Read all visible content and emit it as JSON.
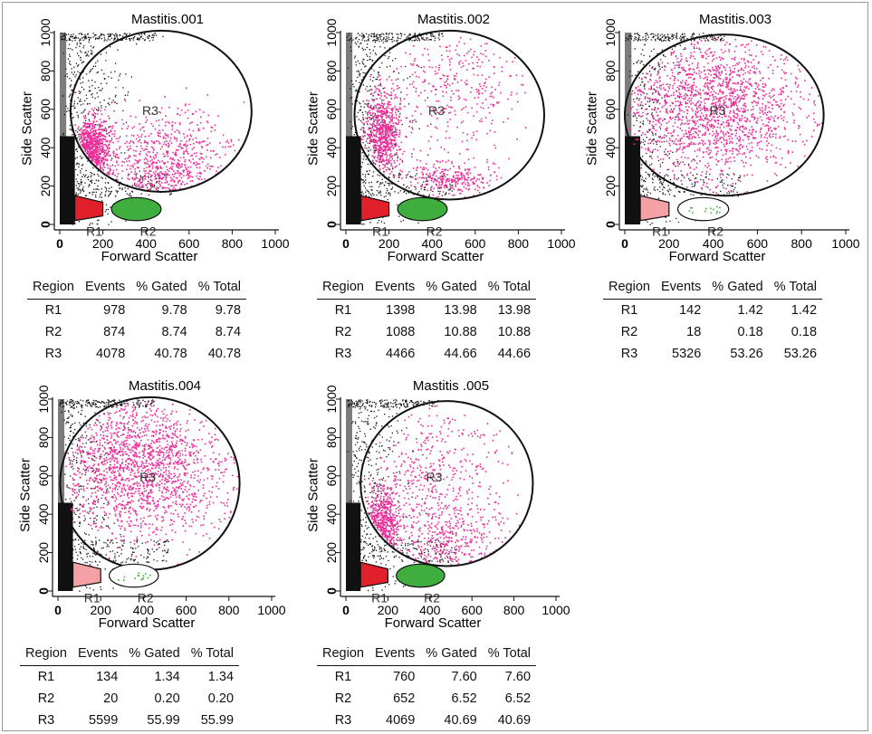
{
  "chart_data": [
    {
      "type": "scatter",
      "title": "Mastitis.001",
      "xlabel": "Forward Scatter",
      "ylabel": "Side Scatter",
      "xlim": [
        0,
        1000
      ],
      "ylim": [
        0,
        1000
      ],
      "xticks": [
        "0",
        "200",
        "400",
        "600",
        "800",
        "1000"
      ],
      "yticks": [
        "0",
        "200",
        "400",
        "600",
        "800",
        "1000"
      ],
      "regions": [
        "R1",
        "R2",
        "R3"
      ],
      "table": {
        "columns": [
          "Region",
          "Events",
          "% Gated",
          "% Total"
        ],
        "rows": [
          [
            "R1",
            "978",
            "9.78",
            "9.78"
          ],
          [
            "R2",
            "874",
            "8.74",
            "8.74"
          ],
          [
            "R3",
            "4078",
            "40.78",
            "40.78"
          ]
        ]
      }
    },
    {
      "type": "scatter",
      "title": "Mastitis.002",
      "xlabel": "Forward Scatter",
      "ylabel": "Side Scatter",
      "xlim": [
        0,
        1000
      ],
      "ylim": [
        0,
        1000
      ],
      "xticks": [
        "0",
        "200",
        "400",
        "600",
        "800",
        "1000"
      ],
      "yticks": [
        "0",
        "200",
        "400",
        "600",
        "800",
        "1000"
      ],
      "regions": [
        "R1",
        "R2",
        "R3"
      ],
      "table": {
        "columns": [
          "Region",
          "Events",
          "% Gated",
          "% Total"
        ],
        "rows": [
          [
            "R1",
            "1398",
            "13.98",
            "13.98"
          ],
          [
            "R2",
            "1088",
            "10.88",
            "10.88"
          ],
          [
            "R3",
            "4466",
            "44.66",
            "44.66"
          ]
        ]
      }
    },
    {
      "type": "scatter",
      "title": "Mastitis.003",
      "xlabel": "Forward Scatter",
      "ylabel": "Side Scatter",
      "xlim": [
        0,
        1000
      ],
      "ylim": [
        0,
        1000
      ],
      "xticks": [
        "0",
        "200",
        "400",
        "600",
        "800",
        "1000"
      ],
      "yticks": [
        "0",
        "200",
        "400",
        "600",
        "800",
        "1000"
      ],
      "regions": [
        "R1",
        "R2",
        "R3"
      ],
      "table": {
        "columns": [
          "Region",
          "Events",
          "% Gated",
          "% Total"
        ],
        "rows": [
          [
            "R1",
            "142",
            "1.42",
            "1.42"
          ],
          [
            "R2",
            "18",
            "0.18",
            "0.18"
          ],
          [
            "R3",
            "5326",
            "53.26",
            "53.26"
          ]
        ]
      }
    },
    {
      "type": "scatter",
      "title": "Mastitis.004",
      "xlabel": "Forward Scatter",
      "ylabel": "Side Scatter",
      "xlim": [
        0,
        1000
      ],
      "ylim": [
        0,
        1000
      ],
      "xticks": [
        "0",
        "200",
        "400",
        "600",
        "800",
        "1000"
      ],
      "yticks": [
        "0",
        "200",
        "400",
        "600",
        "800",
        "1000"
      ],
      "regions": [
        "R1",
        "R2",
        "R3"
      ],
      "table": {
        "columns": [
          "Region",
          "Events",
          "% Gated",
          "% Total"
        ],
        "rows": [
          [
            "R1",
            "134",
            "1.34",
            "1.34"
          ],
          [
            "R2",
            "20",
            "0.20",
            "0.20"
          ],
          [
            "R3",
            "5599",
            "55.99",
            "55.99"
          ]
        ]
      }
    },
    {
      "type": "scatter",
      "title": "Mastitis .005",
      "xlabel": "Forward Scatter",
      "ylabel": "Side Scatter",
      "xlim": [
        0,
        1000
      ],
      "ylim": [
        0,
        1000
      ],
      "xticks": [
        "0",
        "200",
        "400",
        "600",
        "800",
        "1000"
      ],
      "yticks": [
        "0",
        "200",
        "400",
        "600",
        "800",
        "1000"
      ],
      "regions": [
        "R1",
        "R2",
        "R3"
      ],
      "table": {
        "columns": [
          "Region",
          "Events",
          "% Gated",
          "% Total"
        ],
        "rows": [
          [
            "R1",
            "760",
            "7.60",
            "7.60"
          ],
          [
            "R2",
            "652",
            "6.52",
            "6.52"
          ],
          [
            "R3",
            "4069",
            "40.69",
            "40.69"
          ]
        ]
      }
    }
  ],
  "colors": {
    "r1_gate": "#e0202a",
    "r2_gate": "#3fae3f",
    "r3_events": "#ec2e9a",
    "background_events": "#111111",
    "gate_outline": "#111111"
  }
}
